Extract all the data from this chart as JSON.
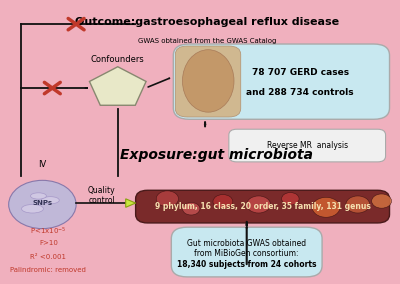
{
  "background_color": "#f0b0be",
  "title_text": "Outcome:gastroesophageal reflux disease",
  "title_sub": "GWAS obtained from the GWAS Catalog",
  "gerd_box_text1": "78 707 GERD cases",
  "gerd_box_text2": "and 288 734 controls",
  "reverse_mr_text": "Reverse MR  analysis",
  "exposure_text": "Exposure:gut microbiota",
  "microbiota_bar_text": "9 phylum, 16 class, 20 order, 35 family, 131 genus",
  "mibio_text1": "Gut microbiota GWAS obtained",
  "mibio_text2": "from MiBioGen consortium:",
  "mibio_text3": "18,340 subjects from 24 cohorts",
  "iv_text": "IV",
  "snp_text": "SNPs",
  "quality_text": "Quality\ncontrol",
  "confounders_text": "Confounders",
  "criteria_text2": "F>10",
  "criteria_text3": "R² <0.001",
  "criteria_text4": "Palindromic: removed",
  "arrow_color": "#111111",
  "cross_color": "#c0392b",
  "gerd_box_color": "#c8e8f0",
  "mibio_box_color": "#c8e8f0",
  "bar_dark": "#7a2a2a",
  "bar_mid": "#a03030",
  "bar_spot": "#c05050",
  "bar_text_color": "#f5e0b0",
  "reverse_box_color": "#f0f0f0",
  "pentagon_fill": "#e8e8c8",
  "pentagon_edge": "#888870",
  "snp_fill": "#c0b8d8",
  "snp_edge": "#8878aa"
}
